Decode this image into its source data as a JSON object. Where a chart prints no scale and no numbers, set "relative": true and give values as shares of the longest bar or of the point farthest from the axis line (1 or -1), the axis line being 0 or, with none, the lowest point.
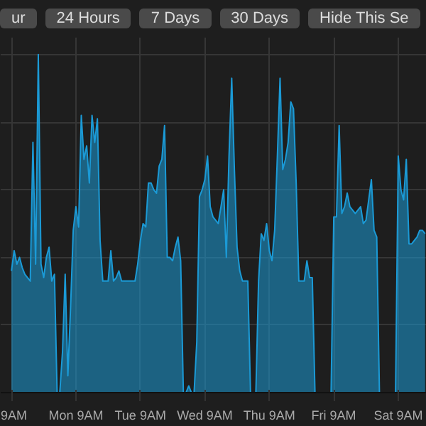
{
  "chart_data": {
    "type": "area",
    "relative": true,
    "grid": true,
    "annotations": [
      "ur",
      "24 Hours",
      "7 Days",
      "30 Days",
      "Hide This Se"
    ],
    "categories": [
      "9AM",
      null,
      null,
      null,
      null,
      null,
      null,
      null,
      null,
      null,
      null,
      null,
      null,
      null,
      null,
      null,
      null,
      null,
      null,
      null,
      null,
      null,
      null,
      null,
      "Mon 9AM",
      null,
      null,
      null,
      null,
      null,
      null,
      null,
      null,
      null,
      null,
      null,
      null,
      null,
      null,
      null,
      null,
      null,
      null,
      null,
      null,
      null,
      null,
      null,
      "Tue 9AM",
      null,
      null,
      null,
      null,
      null,
      null,
      null,
      null,
      null,
      null,
      null,
      null,
      null,
      null,
      null,
      null,
      null,
      null,
      null,
      null,
      null,
      null,
      null,
      "Wed 9AM",
      null,
      null,
      null,
      null,
      null,
      null,
      null,
      null,
      null,
      null,
      null,
      null,
      null,
      null,
      null,
      null,
      null,
      null,
      null,
      null,
      null,
      null,
      null,
      "Thu 9AM",
      null,
      null,
      null,
      null,
      null,
      null,
      null,
      null,
      null,
      null,
      null,
      null,
      null,
      null,
      null,
      null,
      null,
      null,
      null,
      null,
      null,
      null,
      null,
      "Fri 9AM",
      null,
      null,
      null,
      null,
      null,
      null,
      null,
      null,
      null,
      null,
      null,
      null,
      null,
      null,
      null,
      null,
      null,
      null,
      null,
      null,
      null,
      null,
      null,
      "Sat 9AM",
      null,
      null,
      null,
      null,
      null,
      null,
      null,
      null,
      null,
      null
    ],
    "series": [
      {
        "color": "#1b9ad6",
        "values": [
          0.36,
          0.42,
          0.38,
          0.4,
          0.37,
          0.35,
          0.34,
          0.33,
          0.74,
          0.38,
          1.0,
          0.38,
          0.34,
          0.4,
          0.43,
          0.33,
          0.35,
          0,
          0,
          0.12,
          0.35,
          0.05,
          0.25,
          0.48,
          0.55,
          0.49,
          0.82,
          0.69,
          0.73,
          0.62,
          0.82,
          0.74,
          0.81,
          0.45,
          0.33,
          0.33,
          0.33,
          0.42,
          0.33,
          0.34,
          0.36,
          0.33,
          0.33,
          0.33,
          0.33,
          0.33,
          0.33,
          0.38,
          0.45,
          0.5,
          0.49,
          0.62,
          0.62,
          0.6,
          0.59,
          0.67,
          0.69,
          0.79,
          0.4,
          0.4,
          0.39,
          0.43,
          0.46,
          0.39,
          0,
          0,
          0.02,
          0,
          0,
          0.15,
          0.58,
          0.6,
          0.63,
          0.7,
          0.55,
          0.52,
          0.51,
          0.5,
          0.55,
          0.6,
          0.4,
          0.7,
          0.93,
          0.66,
          0.43,
          0.36,
          0.33,
          0.33,
          0.33,
          0,
          0,
          0,
          0.33,
          0.47,
          0.45,
          0.5,
          0.42,
          0.39,
          0.48,
          0.7,
          0.93,
          0.66,
          0.69,
          0.74,
          0.86,
          0.84,
          0.62,
          0.33,
          0.33,
          0.33,
          0.39,
          0.34,
          0.34,
          0,
          0,
          0,
          0,
          0,
          0,
          0,
          0.52,
          0.52,
          0.79,
          0.53,
          0.55,
          0.59,
          0.55,
          0.54,
          0.53,
          0.54,
          0.55,
          0.5,
          0.51,
          0.57,
          0.63,
          0.48,
          0.46,
          0,
          0,
          0,
          0,
          0,
          0,
          0,
          0.7,
          0.6,
          0.57,
          0.69,
          0.44,
          0.44,
          0.45,
          0.46,
          0.48,
          0.48,
          0.47
        ]
      }
    ]
  }
}
